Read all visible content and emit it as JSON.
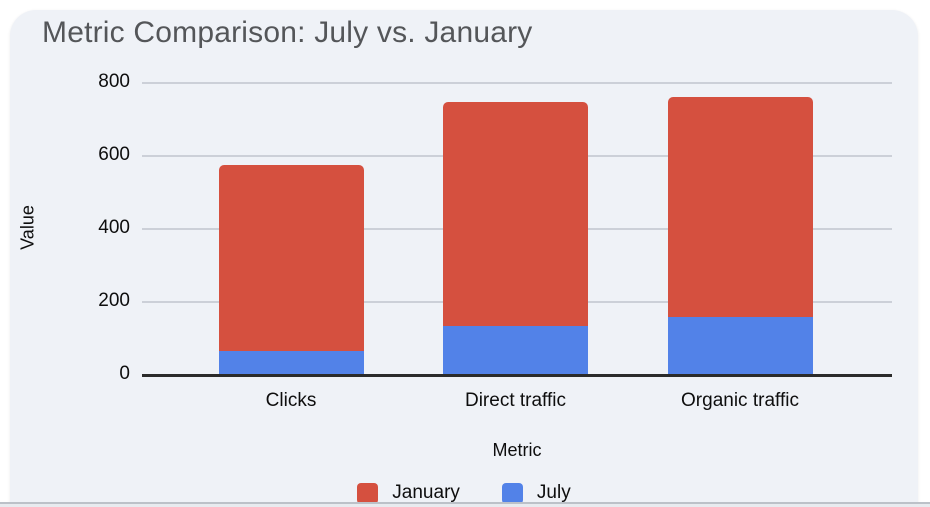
{
  "page": {
    "background": "#ffffff",
    "card_background": "#eff2f7",
    "gridline_color": "#ccd0d8",
    "axis_color": "#2b2b2b",
    "title_color": "#545659"
  },
  "chart_data": {
    "type": "bar",
    "stacked": true,
    "title": "Metric Comparison: July vs. January",
    "xlabel": "Metric",
    "ylabel": "Value",
    "categories": [
      "Clicks",
      "Direct traffic",
      "Organic traffic"
    ],
    "series": [
      {
        "name": "January",
        "color": "#d5503f",
        "values": [
          510,
          612,
          605
        ]
      },
      {
        "name": "July",
        "color": "#5282e8",
        "values": [
          63,
          132,
          155
        ]
      }
    ],
    "stack_order_bottom_to_top": [
      "July",
      "January"
    ],
    "totals": [
      573,
      744,
      760
    ],
    "ylim": [
      0,
      800
    ],
    "yticks": [
      0,
      200,
      400,
      600,
      800
    ],
    "grid": "horizontal",
    "legend_position": "bottom"
  }
}
